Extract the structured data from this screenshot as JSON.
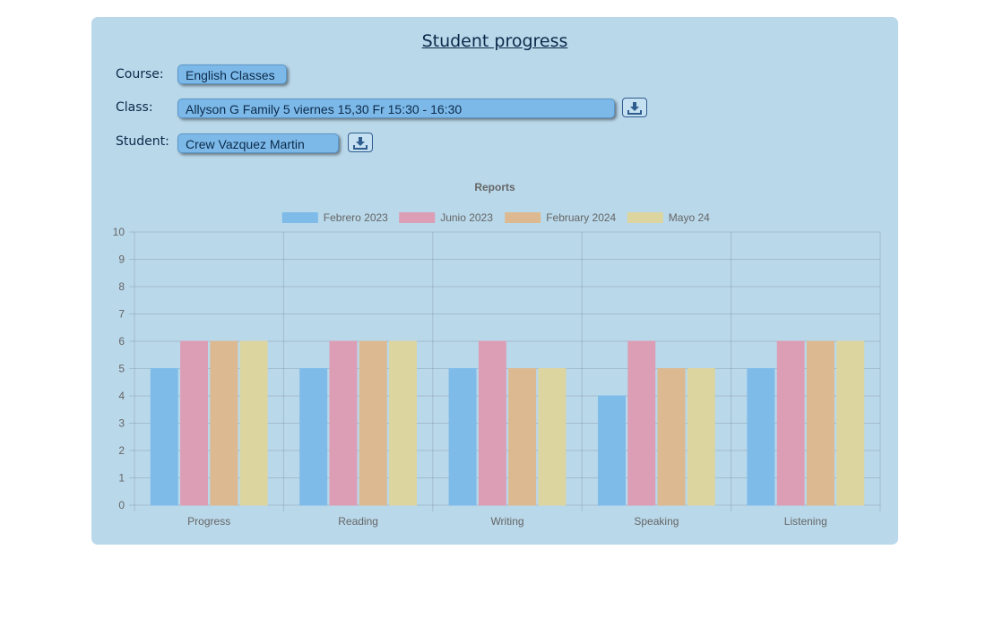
{
  "page": {
    "title": "Student progress"
  },
  "form": {
    "course_label": "Course:",
    "course_value": "English Classes",
    "class_label": "Class:",
    "class_value": "Allyson G Family 5 viernes 15,30 Fr 15:30 - 16:30",
    "student_label": "Student:",
    "student_value": "Crew Vazquez Martin",
    "download_icon": "download-icon"
  },
  "colors": {
    "panel": "#b9d8ea",
    "accent": "#7db9e8"
  },
  "chart_data": {
    "type": "bar",
    "title": "Reports",
    "xlabel": "",
    "ylabel": "",
    "ylim": [
      0,
      10
    ],
    "yticks": [
      0,
      1,
      2,
      3,
      4,
      5,
      6,
      7,
      8,
      9,
      10
    ],
    "grid": true,
    "legend_position": "top",
    "categories": [
      "Progress",
      "Reading",
      "Writing",
      "Speaking",
      "Listening"
    ],
    "series": [
      {
        "name": "Febrero 2023",
        "color": "#7ebbe9",
        "values": [
          5,
          5,
          5,
          4,
          5
        ]
      },
      {
        "name": "Junio 2023",
        "color": "#dc9eb5",
        "values": [
          6,
          6,
          6,
          6,
          6
        ]
      },
      {
        "name": "February 2024",
        "color": "#dcb991",
        "values": [
          6,
          6,
          5,
          5,
          6
        ]
      },
      {
        "name": "Mayo 24",
        "color": "#dcd59f",
        "values": [
          6,
          6,
          5,
          5,
          6
        ]
      }
    ]
  }
}
